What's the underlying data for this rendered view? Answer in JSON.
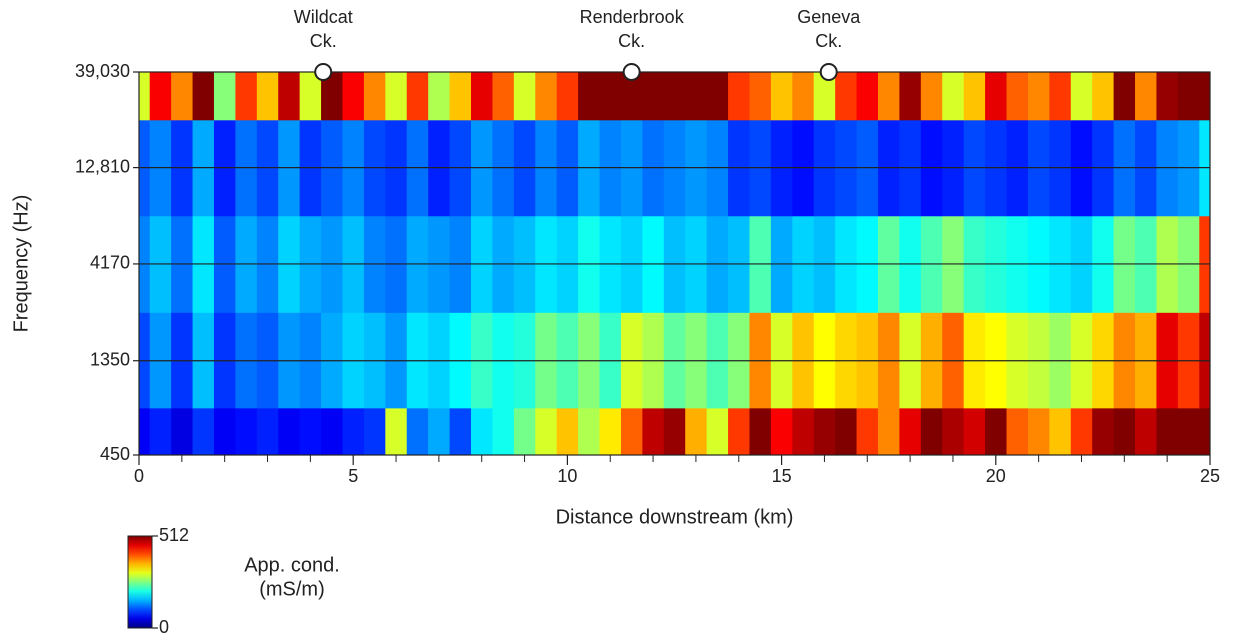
{
  "chart_data": {
    "type": "heatmap",
    "xlabel": "Distance downstream (km)",
    "ylabel": "Frequency (Hz)",
    "x": [
      0,
      0.5,
      1,
      1.5,
      2,
      2.5,
      3,
      3.5,
      4,
      4.5,
      5,
      5.5,
      6,
      6.5,
      7,
      7.5,
      8,
      8.5,
      9,
      9.5,
      10,
      10.5,
      11,
      11.5,
      12,
      12.5,
      13,
      13.5,
      14,
      14.5,
      15,
      15.5,
      16,
      16.5,
      17,
      17.5,
      18,
      18.5,
      19,
      19.5,
      20,
      20.5,
      21,
      21.5,
      22,
      22.5,
      23,
      23.5,
      24,
      24.5,
      25
    ],
    "y": [
      450,
      1350,
      4170,
      12810,
      39030
    ],
    "z": [
      [
        60,
        80,
        50,
        90,
        60,
        70,
        80,
        60,
        70,
        60,
        80,
        90,
        300,
        120,
        150,
        100,
        180,
        200,
        250,
        300,
        350,
        280,
        330,
        400,
        480,
        500,
        360,
        300,
        420,
        520,
        450,
        480,
        500,
        520,
        420,
        380,
        460,
        520,
        490,
        470,
        520,
        400,
        380,
        350,
        420,
        500,
        520,
        480,
        560,
        600,
        620
      ],
      [
        100,
        140,
        90,
        160,
        90,
        120,
        110,
        140,
        130,
        150,
        170,
        160,
        140,
        180,
        170,
        190,
        220,
        200,
        210,
        250,
        230,
        260,
        220,
        300,
        280,
        240,
        260,
        230,
        260,
        380,
        300,
        350,
        320,
        340,
        350,
        380,
        300,
        360,
        400,
        330,
        320,
        300,
        290,
        270,
        300,
        340,
        380,
        360,
        460,
        420,
        480
      ],
      [
        130,
        160,
        120,
        180,
        110,
        150,
        130,
        170,
        150,
        140,
        160,
        130,
        120,
        150,
        140,
        130,
        170,
        150,
        160,
        180,
        170,
        200,
        180,
        170,
        190,
        160,
        170,
        150,
        160,
        230,
        150,
        170,
        160,
        180,
        190,
        240,
        200,
        230,
        260,
        220,
        210,
        200,
        190,
        180,
        170,
        200,
        250,
        230,
        280,
        260,
        420
      ],
      [
        110,
        130,
        90,
        150,
        80,
        120,
        100,
        140,
        90,
        110,
        130,
        100,
        90,
        120,
        80,
        100,
        140,
        120,
        100,
        130,
        110,
        150,
        130,
        140,
        120,
        130,
        140,
        130,
        90,
        100,
        80,
        70,
        90,
        100,
        110,
        80,
        90,
        70,
        80,
        100,
        90,
        80,
        100,
        90,
        70,
        90,
        120,
        100,
        130,
        140,
        180
      ],
      [
        300,
        450,
        380,
        520,
        260,
        420,
        350,
        480,
        300,
        520,
        450,
        380,
        300,
        420,
        280,
        350,
        460,
        400,
        300,
        380,
        420,
        520,
        550,
        600,
        560,
        580,
        650,
        600,
        420,
        400,
        350,
        380,
        300,
        420,
        450,
        380,
        500,
        380,
        300,
        350,
        460,
        400,
        380,
        420,
        300,
        350,
        520,
        380,
        500,
        550,
        600
      ]
    ],
    "xlim": [
      0,
      25
    ],
    "xticks": [
      0,
      5,
      10,
      15,
      20,
      25
    ],
    "xminorticks": [
      1,
      2,
      3,
      4,
      6,
      7,
      8,
      9,
      11,
      12,
      13,
      14,
      16,
      17,
      18,
      19,
      21,
      22,
      23,
      24
    ],
    "ylim": [
      450,
      39030
    ],
    "yticks": [
      450,
      1350,
      4170,
      {
        "value": 12810,
        "label": "12,810"
      },
      {
        "value": 39030,
        "label": "39,030"
      }
    ],
    "ylog": true,
    "grid": true,
    "markers": [
      {
        "x": 4.3,
        "lines": [
          "Wildcat",
          "Ck."
        ]
      },
      {
        "x": 11.5,
        "lines": [
          "Renderbrook",
          "Ck."
        ]
      },
      {
        "x": 16.1,
        "lines": [
          "Geneva",
          "Ck."
        ]
      }
    ],
    "colorbar": {
      "lines": [
        "App. cond.",
        "(mS/m)"
      ],
      "clim": [
        0,
        512
      ],
      "cticks": [
        0,
        512
      ],
      "colormap": "jet"
    }
  }
}
